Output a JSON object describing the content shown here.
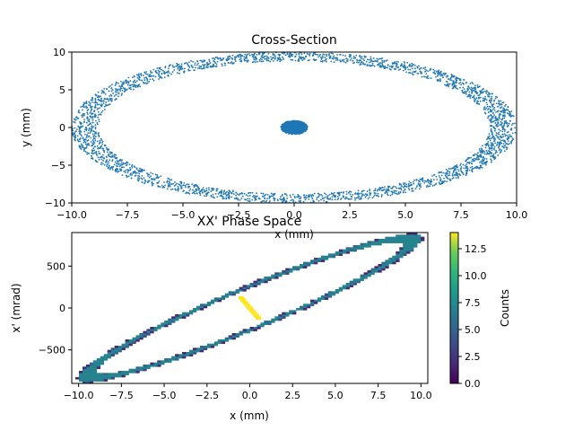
{
  "chart_data": [
    {
      "type": "scatter",
      "title": "Cross-Section",
      "xlabel": "x (mm)",
      "ylabel": "y (mm)",
      "xlim": [
        -10,
        10
      ],
      "ylim": [
        -10,
        10
      ],
      "xticks": [
        "−10.0",
        "−7.5",
        "−5.0",
        "−2.5",
        "0.0",
        "2.5",
        "5.0",
        "7.5",
        "10.0"
      ],
      "yticks": [
        "−10",
        "−5",
        "0",
        "5",
        "10"
      ],
      "color": "#1f77b4",
      "series": [
        {
          "shape": "ellipse-ring",
          "center": [
            0,
            0
          ],
          "rx": [
            8.8,
            10.0
          ],
          "ry": [
            8.8,
            10.0
          ],
          "points_approx": 3000
        },
        {
          "shape": "core-ellipse",
          "center": [
            0,
            0
          ],
          "rx": 0.6,
          "ry": 0.35,
          "points_approx": 600
        }
      ],
      "grid": false
    },
    {
      "type": "heatmap",
      "title": "XX' Phase Space",
      "xlabel": "x (mm)",
      "ylabel": "x' (mrad)",
      "xlim": [
        -10.4,
        10.4
      ],
      "ylim": [
        -900,
        900
      ],
      "xticks": [
        "−10.0",
        "−7.5",
        "−5.0",
        "−2.5",
        "0.0",
        "2.5",
        "5.0",
        "7.5",
        "10.0"
      ],
      "yticks": [
        "−500",
        "0",
        "500"
      ],
      "colormap": "viridis",
      "colorbar": {
        "label": "Counts",
        "range": [
          0,
          14
        ],
        "ticks": [
          "0.0",
          "2.5",
          "5.0",
          "7.5",
          "10.0",
          "12.5"
        ]
      },
      "structures": [
        {
          "shape": "tilted-ellipse-ring",
          "x_extent": [
            -10,
            10
          ],
          "xp_extent": [
            -880,
            880
          ],
          "counts_range": [
            1,
            6
          ]
        },
        {
          "shape": "core-streak",
          "x_range": [
            -0.5,
            0.5
          ],
          "xp_range": [
            -120,
            120
          ],
          "counts": 14
        }
      ],
      "grid": false
    }
  ]
}
